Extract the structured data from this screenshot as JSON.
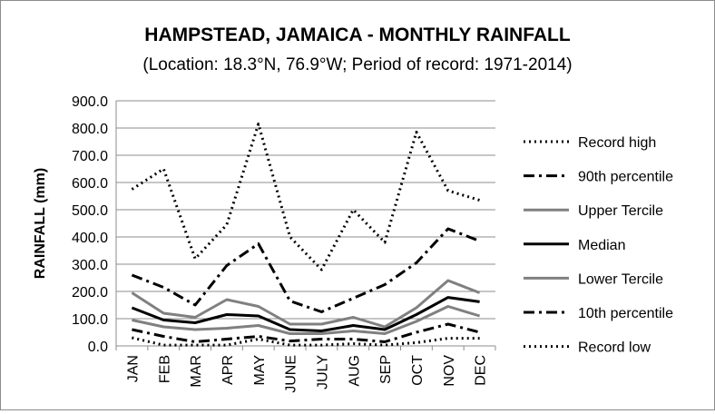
{
  "chart_data": {
    "type": "line",
    "title": "HAMPSTEAD, JAMAICA - MONTHLY RAINFALL",
    "subtitle": "(Location: 18.3°N, 76.9°W; Period of record: 1971-2014)",
    "xlabel": "",
    "ylabel": "RAINFALL (mm)",
    "ylim": [
      0,
      900
    ],
    "y_ticks": [
      "0.0",
      "100.0",
      "200.0",
      "300.0",
      "400.0",
      "500.0",
      "600.0",
      "700.0",
      "800.0",
      "900.0"
    ],
    "grid": true,
    "legend_position": "right",
    "categories": [
      "JAN",
      "FEB",
      "MAR",
      "APR",
      "MAY",
      "JUNE",
      "JULY",
      "AUG",
      "SEP",
      "OCT",
      "NOV",
      "DEC"
    ],
    "series": [
      {
        "name": "Record high",
        "style": "dotted",
        "color": "#000000",
        "values": [
          575,
          650,
          320,
          445,
          815,
          400,
          280,
          500,
          380,
          785,
          570,
          535
        ]
      },
      {
        "name": "90th percentile",
        "style": "dashdot",
        "color": "#000000",
        "values": [
          260,
          215,
          150,
          295,
          375,
          165,
          125,
          175,
          225,
          305,
          430,
          385
        ]
      },
      {
        "name": "Upper Tercile",
        "style": "solid",
        "color": "#808080",
        "values": [
          195,
          120,
          105,
          170,
          145,
          80,
          80,
          105,
          70,
          140,
          240,
          195
        ]
      },
      {
        "name": "Median",
        "style": "solid",
        "color": "#000000",
        "values": [
          140,
          95,
          85,
          115,
          110,
          60,
          55,
          75,
          60,
          115,
          178,
          162
        ]
      },
      {
        "name": "Lower Tercile",
        "style": "solid",
        "color": "#808080",
        "values": [
          95,
          70,
          60,
          65,
          75,
          45,
          45,
          55,
          45,
          90,
          145,
          110
        ]
      },
      {
        "name": "10th percentile",
        "style": "dashdot",
        "color": "#000000",
        "values": [
          60,
          35,
          15,
          25,
          35,
          18,
          25,
          25,
          15,
          50,
          80,
          50
        ]
      },
      {
        "name": "Record low",
        "style": "dotted",
        "color": "#000000",
        "values": [
          30,
          3,
          3,
          3,
          25,
          3,
          3,
          8,
          3,
          12,
          28,
          28
        ]
      }
    ]
  }
}
